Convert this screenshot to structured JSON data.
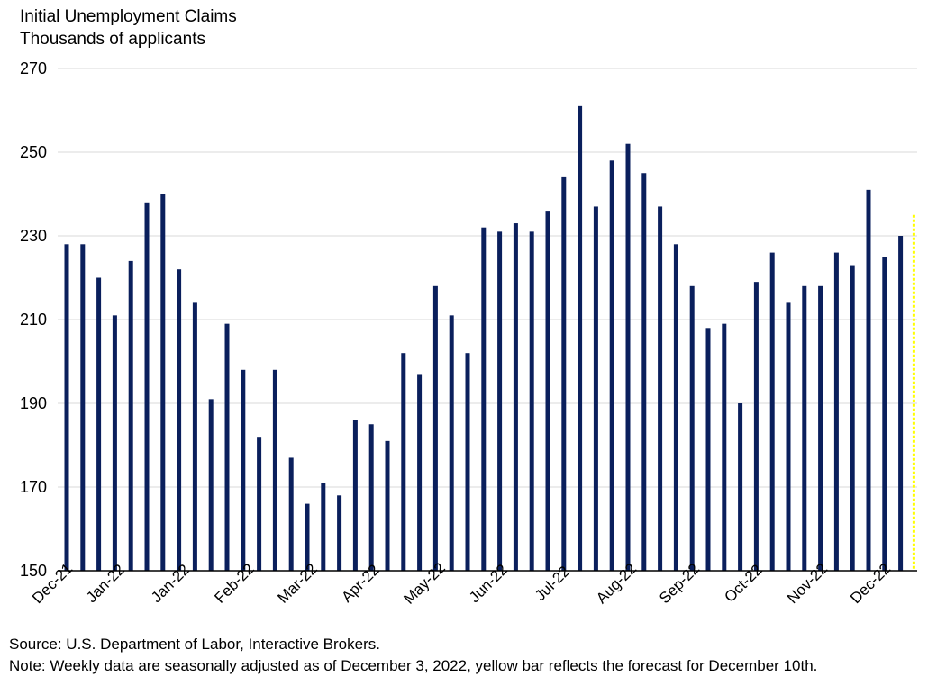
{
  "chart_data": {
    "type": "bar",
    "title": "Initial Unemployment Claims",
    "subtitle": "Thousands of applicants",
    "ylim": [
      150,
      270
    ],
    "yticks": [
      150,
      170,
      190,
      210,
      230,
      250,
      270
    ],
    "grid": true,
    "xtick_labels": [
      "Dec-21",
      "Jan-22",
      "Jan-22",
      "Feb-22",
      "Mar-22",
      "Apr-22",
      "May-22",
      "Jun-22",
      "Jul-22",
      "Aug-22",
      "Sep-22",
      "Oct-22",
      "Nov-22",
      "Dec-22"
    ],
    "values": [
      228,
      228,
      220,
      211,
      224,
      238,
      240,
      222,
      214,
      191,
      209,
      198,
      182,
      198,
      177,
      166,
      171,
      168,
      186,
      185,
      181,
      202,
      197,
      218,
      211,
      202,
      232,
      231,
      233,
      231,
      236,
      244,
      261,
      237,
      248,
      252,
      245,
      237,
      228,
      218,
      208,
      209,
      190,
      219,
      226,
      214,
      218,
      218,
      226,
      223,
      241,
      225,
      230
    ],
    "forecast": {
      "value": 235
    },
    "colors": {
      "bar": "#0a1f5c",
      "forecast": "#ffff00",
      "grid": "#d9d9d9",
      "axis": "#000000"
    }
  },
  "footer": {
    "source": "Source: U.S. Department of Labor, Interactive Brokers.",
    "note": "Note: Weekly data are seasonally adjusted as of December 3, 2022, yellow bar reflects the forecast for December 10th."
  }
}
